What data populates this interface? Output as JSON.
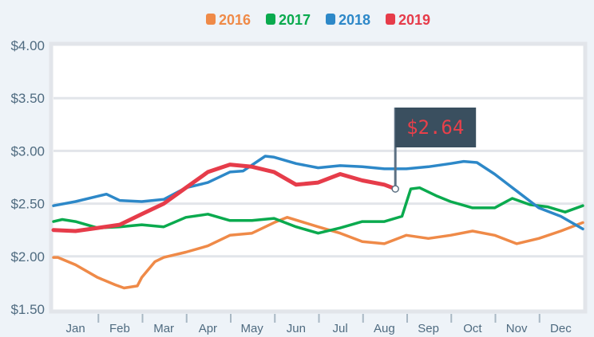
{
  "chart_data": {
    "type": "line",
    "title": "",
    "xlabel": "",
    "ylabel": "",
    "ylim": [
      1.5,
      4.0
    ],
    "xlim_months": [
      0,
      12
    ],
    "yticks": [
      "$1.50",
      "$2.00",
      "$2.50",
      "$3.00",
      "$3.50",
      "$4.00"
    ],
    "ytick_values": [
      1.5,
      2.0,
      2.5,
      3.0,
      3.5,
      4.0
    ],
    "categories": [
      "Jan",
      "Feb",
      "Mar",
      "Apr",
      "May",
      "Jun",
      "Jul",
      "Aug",
      "Sep",
      "Oct",
      "Nov",
      "Dec"
    ],
    "grid": true,
    "legend_position": "top-center",
    "series": [
      {
        "name": "2016",
        "color": "#ef8a48",
        "x": [
          0,
          0.1,
          0.5,
          1,
          1.4,
          1.6,
          1.9,
          2,
          2.3,
          2.5,
          3,
          3.5,
          4,
          4.5,
          5,
          5.3,
          6,
          6.5,
          7,
          7.5,
          8,
          8.5,
          9,
          9.5,
          10,
          10.5,
          11,
          11.5,
          12
        ],
        "y": [
          1.99,
          1.99,
          1.92,
          1.8,
          1.73,
          1.7,
          1.72,
          1.8,
          1.95,
          1.99,
          2.04,
          2.1,
          2.2,
          2.22,
          2.32,
          2.37,
          2.28,
          2.22,
          2.14,
          2.12,
          2.2,
          2.17,
          2.2,
          2.24,
          2.2,
          2.12,
          2.17,
          2.24,
          2.32
        ]
      },
      {
        "name": "2017",
        "color": "#0aaa4e",
        "x": [
          0,
          0.2,
          0.5,
          1,
          1.5,
          2,
          2.5,
          3,
          3.5,
          4,
          4.5,
          5,
          5.5,
          6,
          6.5,
          7,
          7.5,
          7.9,
          8.1,
          8.3,
          8.7,
          9,
          9.5,
          10,
          10.4,
          10.8,
          11.2,
          11.6,
          12
        ],
        "y": [
          2.33,
          2.35,
          2.33,
          2.27,
          2.28,
          2.3,
          2.28,
          2.37,
          2.4,
          2.34,
          2.34,
          2.36,
          2.28,
          2.22,
          2.27,
          2.33,
          2.33,
          2.38,
          2.64,
          2.65,
          2.57,
          2.52,
          2.46,
          2.46,
          2.55,
          2.49,
          2.47,
          2.42,
          2.48
        ]
      },
      {
        "name": "2018",
        "color": "#2d88c8",
        "x": [
          0,
          0.5,
          1,
          1.2,
          1.5,
          2,
          2.5,
          3,
          3.5,
          4,
          4.3,
          4.8,
          5,
          5.5,
          6,
          6.5,
          7,
          7.5,
          8,
          8.5,
          9,
          9.3,
          9.6,
          10,
          10.5,
          11,
          11.5,
          12
        ],
        "y": [
          2.48,
          2.52,
          2.57,
          2.59,
          2.53,
          2.52,
          2.54,
          2.65,
          2.7,
          2.8,
          2.81,
          2.95,
          2.94,
          2.88,
          2.84,
          2.86,
          2.85,
          2.83,
          2.83,
          2.85,
          2.88,
          2.9,
          2.89,
          2.78,
          2.62,
          2.46,
          2.38,
          2.26
        ]
      },
      {
        "name": "2019",
        "color": "#e63c4a",
        "x": [
          0,
          0.5,
          1,
          1.5,
          2,
          2.5,
          3,
          3.5,
          4,
          4.5,
          5,
          5.5,
          6,
          6.5,
          7,
          7.5,
          7.75
        ],
        "y": [
          2.25,
          2.24,
          2.27,
          2.3,
          2.4,
          2.5,
          2.65,
          2.8,
          2.87,
          2.85,
          2.8,
          2.68,
          2.7,
          2.78,
          2.72,
          2.68,
          2.64
        ]
      }
    ],
    "annotation": {
      "label": "$2.64",
      "series": "2019",
      "x": 7.75,
      "y": 2.64
    }
  }
}
